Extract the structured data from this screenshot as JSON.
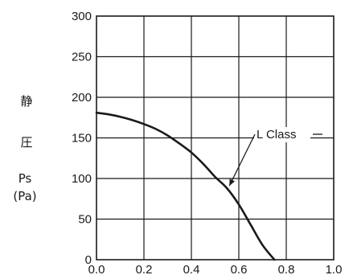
{
  "chart_data": {
    "type": "line",
    "title": "",
    "xlabel": "",
    "ylabel_lines": [
      "静",
      "圧",
      "Ps",
      "(Pa)"
    ],
    "xlim": [
      0.0,
      1.0
    ],
    "ylim": [
      0,
      300
    ],
    "x_ticks": [
      0.0,
      0.2,
      0.4,
      0.6,
      0.8,
      1.0
    ],
    "x_tick_labels": [
      "0.0",
      "0.2",
      "0.4",
      "0.6",
      "0.8",
      "1.0"
    ],
    "y_ticks": [
      0,
      50,
      100,
      150,
      200,
      250,
      300
    ],
    "y_tick_labels": [
      "0",
      "50",
      "100",
      "150",
      "200",
      "250",
      "300"
    ],
    "grid": true,
    "series": [
      {
        "name": "L Class",
        "color": "#1a1a1a",
        "x": [
          0.0,
          0.05,
          0.1,
          0.15,
          0.2,
          0.25,
          0.3,
          0.35,
          0.4,
          0.45,
          0.5,
          0.55,
          0.6,
          0.65,
          0.7,
          0.75
        ],
        "y": [
          181,
          179,
          176,
          172,
          167,
          161,
          153,
          143,
          132,
          118,
          102,
          88,
          68,
          43,
          18,
          0
        ]
      }
    ],
    "annotations": [
      {
        "text": "L Class",
        "target": [
          0.55,
          88
        ]
      }
    ]
  },
  "colors": {
    "axis": "#1a1a1a",
    "grid": "#1a1a1a",
    "curve": "#1a1a1a"
  }
}
